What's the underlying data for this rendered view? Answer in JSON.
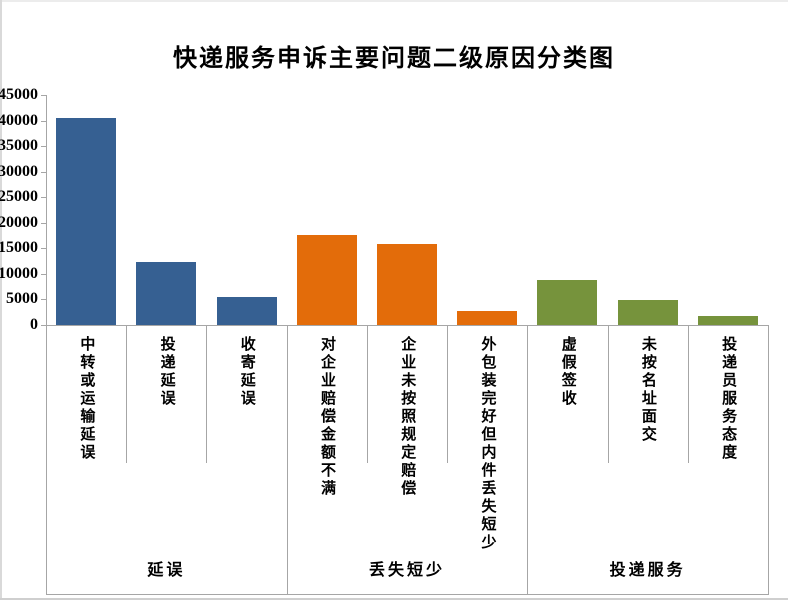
{
  "title": "快递服务申诉主要问题二级原因分类图",
  "chart_data": {
    "type": "bar",
    "title": "快递服务申诉主要问题二级原因分类图",
    "xlabel": "",
    "ylabel": "",
    "ylim": [
      0,
      45000
    ],
    "y_axis": {
      "min": 0,
      "max": 45000,
      "step": 5000,
      "tick_labels": [
        "0",
        "5000",
        "10000",
        "15000",
        "20000",
        "25000",
        "30000",
        "35000",
        "40000",
        "45000"
      ]
    },
    "grid": false,
    "legend": "none",
    "axis_line_color": "#a6a6a6",
    "groups": [
      {
        "label": "延误",
        "color": "#366092",
        "categories": [
          "中转或运输延误",
          "投递延误",
          "收寄延误"
        ],
        "values": [
          40500,
          12400,
          5500
        ]
      },
      {
        "label": "丢失短少",
        "color": "#e36c0a",
        "categories": [
          "对企业赔偿金额不满",
          "企业未按照规定赔偿",
          "外包装完好但内件丢失短少"
        ],
        "values": [
          17700,
          15900,
          2800
        ]
      },
      {
        "label": "投递服务",
        "color": "#76933c",
        "categories": [
          "虚假签收",
          "未按名址面交",
          "投递员服务态度"
        ],
        "values": [
          8900,
          4900,
          1800
        ]
      }
    ]
  }
}
